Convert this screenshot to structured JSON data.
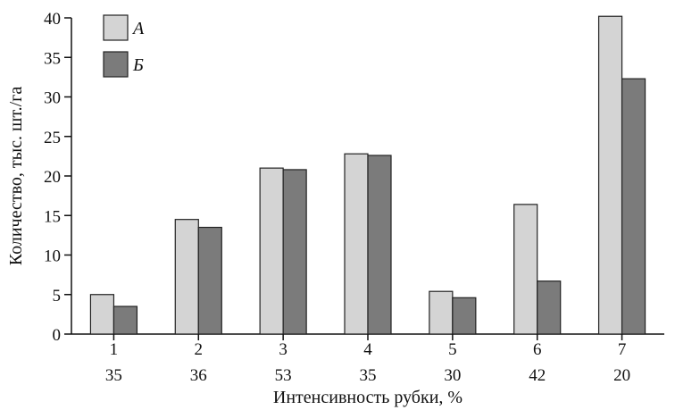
{
  "chart_data": {
    "type": "bar",
    "title": "",
    "xlabel": "Интенсивность рубки, %",
    "ylabel": "Количество, тыс. шт./га",
    "ylim": [
      0,
      40
    ],
    "yticks": [
      0,
      5,
      10,
      15,
      20,
      25,
      30,
      35,
      40
    ],
    "categories": [
      "1",
      "2",
      "3",
      "4",
      "5",
      "6",
      "7"
    ],
    "category_sublabels": [
      "35",
      "36",
      "53",
      "35",
      "30",
      "42",
      "20"
    ],
    "series": [
      {
        "name": "А",
        "values": [
          5.0,
          14.5,
          21.0,
          22.8,
          5.4,
          16.4,
          40.2
        ],
        "color": "#d4d4d4"
      },
      {
        "name": "Б",
        "values": [
          3.5,
          13.5,
          20.8,
          22.6,
          4.6,
          6.7,
          32.3
        ],
        "color": "#7b7b7b"
      }
    ],
    "legend_position": "top-left",
    "grid": false
  }
}
